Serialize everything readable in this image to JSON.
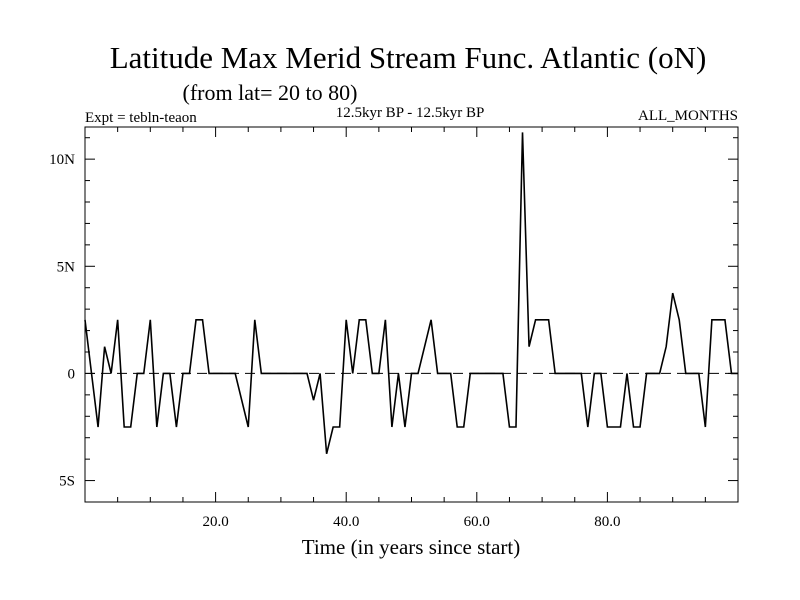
{
  "chart_data": {
    "type": "line",
    "title": "Latitude Max Merid Stream Func. Atlantic (oN)",
    "subtitle": "(from lat= 20 to 80)",
    "experiment_label": "Expt = tebln-teaon",
    "period_label": "12.5kyr BP - 12.5kyr BP",
    "season_label": "ALL_MONTHS",
    "xlabel": "Time (in years since start)",
    "ylabel": "",
    "xlim": [
      0,
      100
    ],
    "ylim": [
      -6,
      11.5
    ],
    "x_ticks": [
      {
        "value": 20,
        "label": "20.0"
      },
      {
        "value": 40,
        "label": "40.0"
      },
      {
        "value": 60,
        "label": "60.0"
      },
      {
        "value": 80,
        "label": "80.0"
      }
    ],
    "y_ticks": [
      {
        "value": 10,
        "label": "10N"
      },
      {
        "value": 5,
        "label": "5N"
      },
      {
        "value": 0,
        "label": "0"
      },
      {
        "value": -5,
        "label": "5S"
      }
    ],
    "zero_line": {
      "value": 0,
      "style": "dashed"
    },
    "series": [
      {
        "name": "Latitude Max Merid Stream Func.",
        "x": [
          0,
          1,
          2,
          3,
          4,
          5,
          6,
          7,
          8,
          9,
          10,
          11,
          12,
          13,
          14,
          15,
          16,
          17,
          18,
          19,
          20,
          21,
          22,
          23,
          24,
          25,
          26,
          27,
          28,
          29,
          30,
          31,
          32,
          33,
          34,
          35,
          36,
          37,
          38,
          39,
          40,
          41,
          42,
          43,
          44,
          45,
          46,
          47,
          48,
          49,
          50,
          51,
          52,
          53,
          54,
          55,
          56,
          57,
          58,
          59,
          60,
          61,
          62,
          63,
          64,
          65,
          66,
          67,
          68,
          69,
          70,
          71,
          72,
          73,
          74,
          75,
          76,
          77,
          78,
          79,
          80,
          81,
          82,
          83,
          84,
          85,
          86,
          87,
          88,
          89,
          90,
          91,
          92,
          93,
          94,
          95,
          96,
          97,
          98,
          99,
          100
        ],
        "y": [
          2.5,
          0,
          -2.5,
          1.25,
          0,
          2.5,
          -2.5,
          -2.5,
          0,
          0,
          2.5,
          -2.5,
          0,
          0,
          -2.5,
          0,
          0,
          2.5,
          2.5,
          0,
          0,
          0,
          0,
          0,
          -1.25,
          -2.5,
          2.5,
          0,
          0,
          0,
          0,
          0,
          0,
          0,
          0,
          -1.25,
          0,
          -3.75,
          -2.5,
          -2.5,
          2.5,
          0,
          2.5,
          2.5,
          0,
          0,
          2.5,
          -2.5,
          0,
          -2.5,
          0,
          0,
          1.25,
          2.5,
          0,
          0,
          0,
          -2.5,
          -2.5,
          0,
          0,
          0,
          0,
          0,
          0,
          -2.5,
          -2.5,
          11.25,
          1.25,
          2.5,
          2.5,
          2.5,
          0,
          0,
          0,
          0,
          0,
          -2.5,
          0,
          0,
          -2.5,
          -2.5,
          -2.5,
          0,
          -2.5,
          -2.5,
          0,
          0,
          0,
          1.25,
          3.75,
          2.5,
          0,
          0,
          0,
          -2.5,
          2.5,
          2.5,
          2.5,
          0,
          0
        ]
      }
    ]
  }
}
